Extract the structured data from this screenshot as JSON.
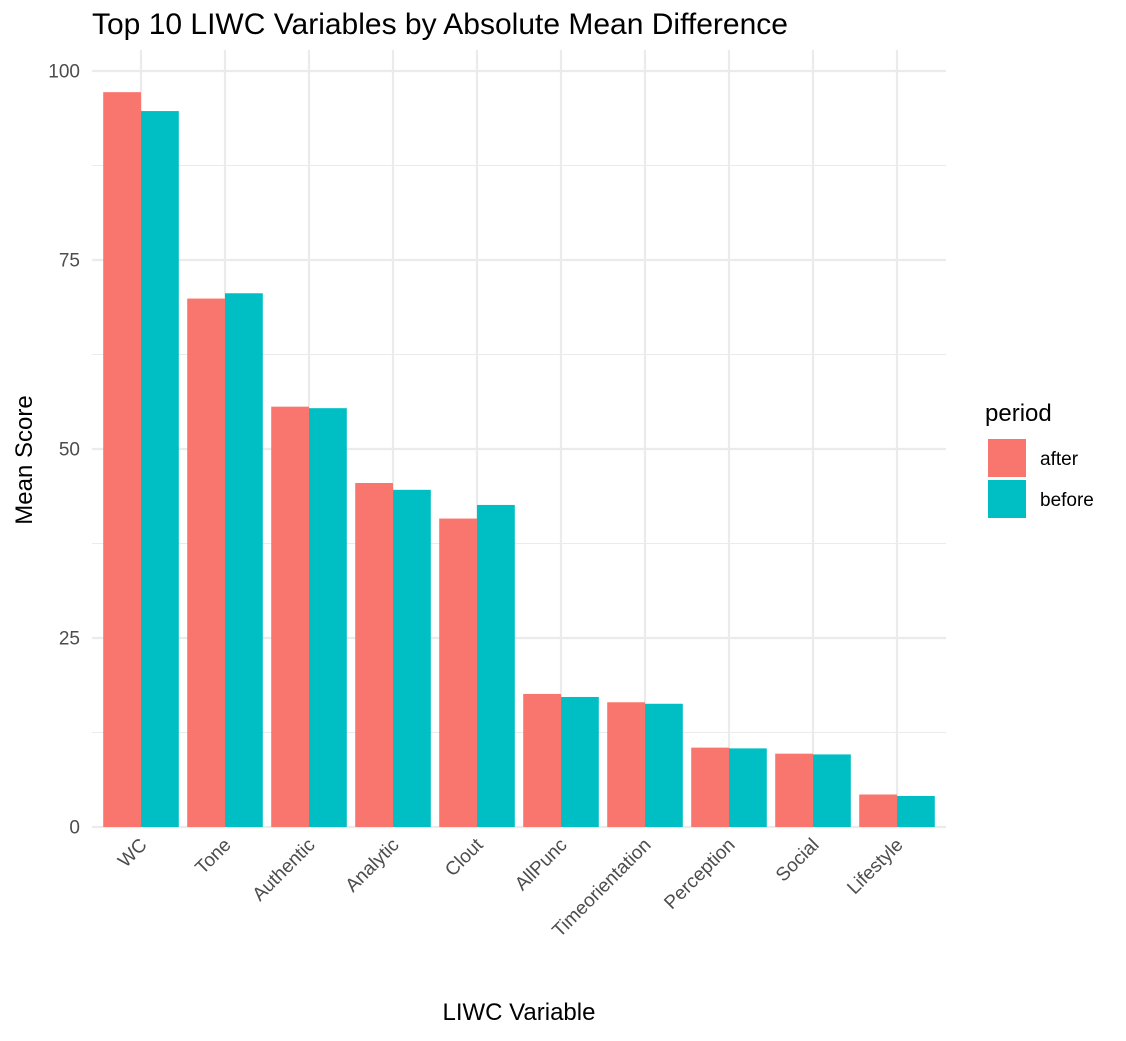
{
  "chart_data": {
    "type": "bar",
    "title": "Top 10 LIWC Variables by Absolute Mean Difference",
    "xlabel": "LIWC Variable",
    "ylabel": "Mean Score",
    "ylim": [
      0,
      100
    ],
    "yticks": [
      0,
      25,
      50,
      75,
      100
    ],
    "grid": true,
    "categories": [
      "WC",
      "Tone",
      "Authentic",
      "Analytic",
      "Clout",
      "AllPunc",
      "Timeorientation",
      "Perception",
      "Social",
      "Lifestyle"
    ],
    "series": [
      {
        "name": "after",
        "color": "#f8766d",
        "values": [
          97.2,
          69.9,
          55.6,
          45.5,
          40.8,
          17.6,
          16.5,
          10.5,
          9.7,
          4.3
        ]
      },
      {
        "name": "before",
        "color": "#00bfc4",
        "values": [
          94.7,
          70.6,
          55.4,
          44.6,
          42.6,
          17.2,
          16.3,
          10.4,
          9.6,
          4.1
        ]
      }
    ],
    "legend": {
      "title": "period",
      "position": "right"
    }
  }
}
